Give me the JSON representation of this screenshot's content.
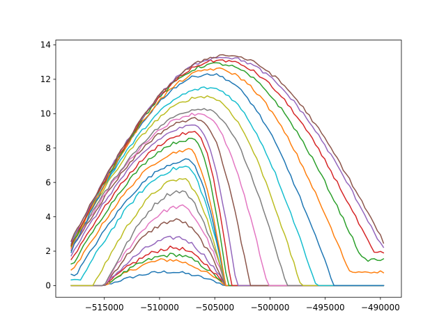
{
  "chart_data": {
    "type": "line",
    "title": "",
    "xlabel": "",
    "ylabel": "",
    "xlim": [
      -519400,
      -488100
    ],
    "ylim": [
      -0.68,
      14.28
    ],
    "x_ticks": [
      -515000,
      -510000,
      -505000,
      -500000,
      -495000,
      -490000
    ],
    "x_tick_labels": [
      "−515000",
      "−510000",
      "−505000",
      "−500000",
      "−495000",
      "−490000"
    ],
    "y_ticks": [
      0,
      2,
      4,
      6,
      8,
      10,
      12,
      14
    ],
    "y_tick_labels": [
      "0",
      "2",
      "4",
      "6",
      "8",
      "10",
      "12",
      "14"
    ],
    "grid": false,
    "legend": "none",
    "colors": [
      "#1f77b4",
      "#ff7f0e",
      "#2ca02c",
      "#d62728",
      "#9467bd",
      "#8c564b",
      "#e377c2",
      "#7f7f7f",
      "#bcbd22",
      "#17becf"
    ],
    "series_shape": {
      "left_x": [
        -518000,
        -518000,
        -518000,
        -518000,
        -518000,
        -518000,
        -518000,
        -518000,
        -518000,
        -518000,
        -518000,
        -518000,
        -518000,
        -518000,
        -518000,
        -518000,
        -518000,
        -518000,
        -518000,
        -518000,
        -518000,
        -518000,
        -518000,
        -518000,
        -518000,
        -518000
      ],
      "start_y": [
        0,
        0,
        0,
        0,
        0,
        0,
        0,
        0,
        0.0,
        0.3,
        0.6,
        0.9,
        1.2,
        1.5,
        1.8,
        2.1,
        2.2,
        2.3,
        2.4,
        2.5,
        2.0,
        2.2,
        2.3,
        2.4,
        2.5,
        2.6
      ],
      "rise_start_x": [
        -515000,
        -515000,
        -515000,
        -515000,
        -515000,
        -515000,
        -515000,
        -515000,
        -516000,
        -517200,
        -517600,
        -517800,
        -517900,
        -518000,
        -518000,
        -518000,
        -518000,
        -518000,
        -518000,
        -518000,
        -518000,
        -518000,
        -518000,
        -518000,
        -518000,
        -518000
      ],
      "peak_x": [
        -509000,
        -509000,
        -508500,
        -508500,
        -508300,
        -508300,
        -508000,
        -508000,
        -507800,
        -507500,
        -507300,
        -507200,
        -507000,
        -506800,
        -506700,
        -506500,
        -506300,
        -506000,
        -505800,
        -505500,
        -505500,
        -505000,
        -504800,
        -504500,
        -504300,
        -504000
      ],
      "peak_y": [
        0.8,
        1.5,
        1.8,
        2.2,
        2.8,
        3.8,
        4.6,
        5.5,
        6.2,
        6.9,
        7.3,
        7.9,
        8.5,
        8.9,
        9.3,
        9.7,
        10.0,
        10.3,
        11.0,
        11.5,
        12.3,
        12.6,
        12.9,
        13.1,
        13.3,
        13.4
      ],
      "drop_end_x": [
        -504000,
        -504000,
        -504000,
        -504000,
        -504000,
        -504000,
        -504000,
        -504000,
        -504000,
        -504000,
        -504000,
        -504000,
        -503800,
        -503500,
        -503000,
        -501800,
        -500200,
        -498500,
        -497200,
        -495800,
        -494200,
        -492800,
        -491600,
        -490600,
        -489800,
        -489600
      ],
      "end_y": [
        0,
        0,
        0,
        0,
        0,
        0,
        0,
        0,
        0,
        0,
        0,
        0,
        0,
        0,
        0,
        0,
        0,
        0,
        0,
        0,
        0,
        0.8,
        1.5,
        1.9,
        2.2,
        2.4
      ]
    }
  }
}
